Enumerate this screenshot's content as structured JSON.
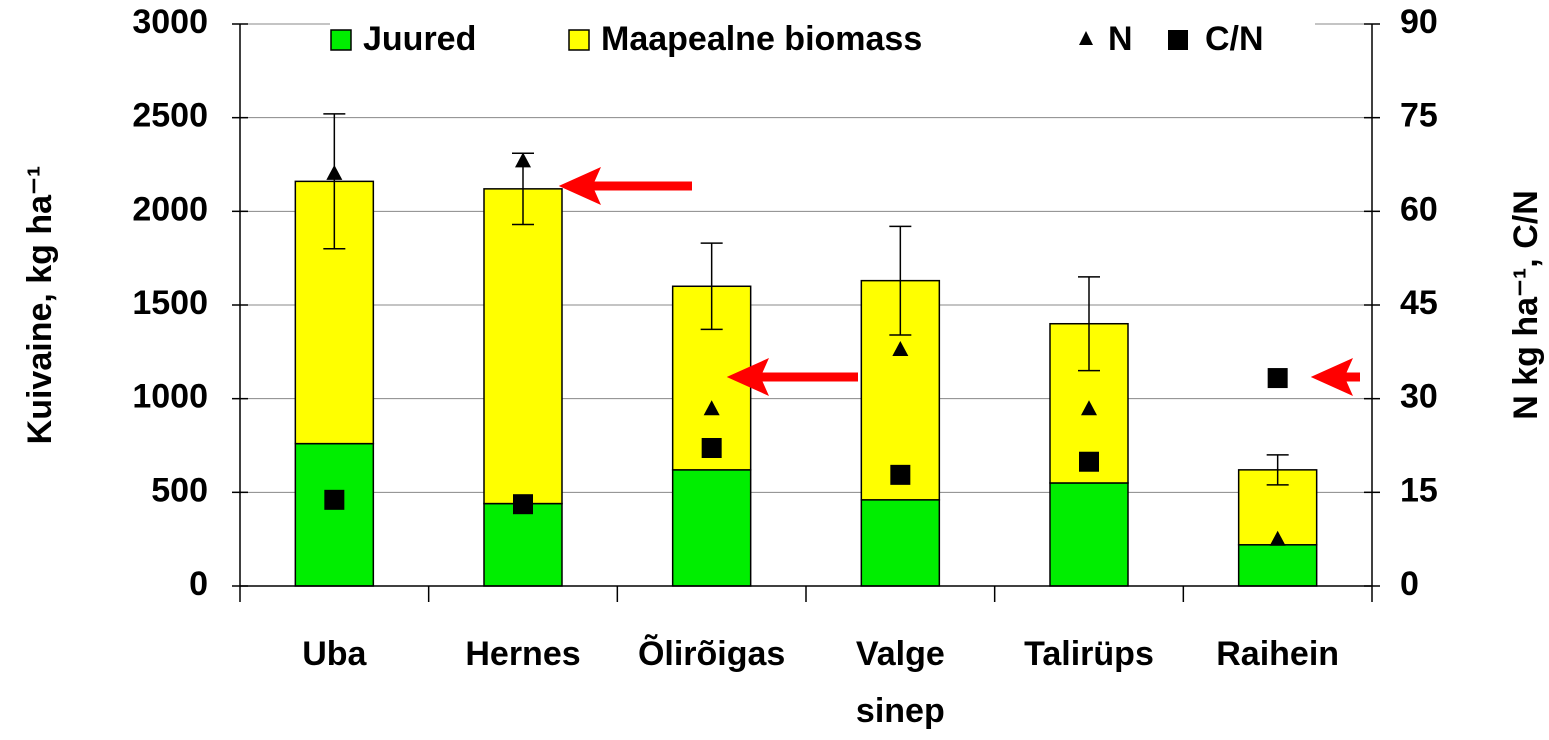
{
  "chart_data": {
    "type": "bar",
    "categories": [
      "Uba",
      "Hernes",
      "Õlirõigas",
      "Valge\nsinep",
      "Talirüps",
      "Raihein"
    ],
    "series": [
      {
        "name": "Juured",
        "color": "#00ee00",
        "values": [
          760,
          440,
          620,
          460,
          550,
          220
        ]
      },
      {
        "name": "Maapealne biomass",
        "color": "#ffff00",
        "values": [
          1400,
          1680,
          980,
          1170,
          850,
          400
        ],
        "errors": [
          360,
          190,
          230,
          290,
          250,
          80
        ]
      },
      {
        "name": "N",
        "color": "#000000",
        "type": "scatter",
        "marker": "triangle",
        "axis": "y2",
        "values": [
          66,
          68,
          28.3,
          37.8,
          28.3,
          7.4
        ]
      },
      {
        "name": "C/N",
        "color": "#000000",
        "type": "scatter",
        "marker": "square",
        "axis": "y2",
        "values": [
          13.8,
          13.1,
          22.1,
          17.8,
          19.9,
          33.3
        ]
      }
    ],
    "stacked": true,
    "ylabel": "Kuivaine, kg ha⁻¹",
    "y2label": "N kg ha⁻¹, C/N",
    "ylim": [
      0,
      3000
    ],
    "yticks": [
      0,
      500,
      1000,
      1500,
      2000,
      2500,
      3000
    ],
    "y2lim": [
      0,
      90
    ],
    "y2ticks": [
      0,
      15,
      30,
      45,
      60,
      75,
      90
    ],
    "grid": true,
    "legend": "top"
  }
}
